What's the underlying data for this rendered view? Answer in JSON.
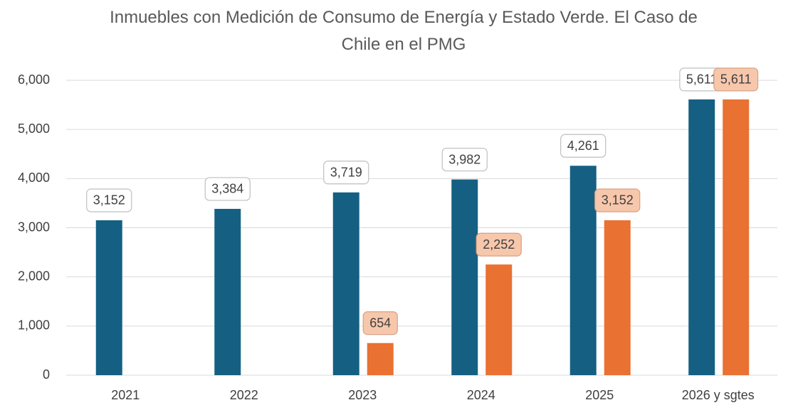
{
  "chart_data": {
    "type": "bar",
    "title": "Inmuebles con Medición de Consumo de Energía y Estado Verde. El Caso de Chile en el PMG",
    "categories": [
      "2021",
      "2022",
      "2023",
      "2024",
      "2025",
      "2026 y sgtes"
    ],
    "series": [
      {
        "color": "#156082",
        "values": [
          3152,
          3384,
          3719,
          3982,
          4261,
          5611
        ],
        "value_labels": [
          "3,152",
          "3,384",
          "3,719",
          "3,982",
          "4,261",
          "5,611"
        ]
      },
      {
        "color": "#e97132",
        "values": [
          null,
          null,
          654,
          2252,
          3152,
          5611
        ],
        "value_labels": [
          null,
          null,
          "654",
          "2,252",
          "3,152",
          "5,611"
        ]
      }
    ],
    "ylim": [
      0,
      6000
    ],
    "yticks": [
      0,
      {
        "value": 1000,
        "label": "1,000"
      },
      {
        "value": 2000,
        "label": "2,000"
      },
      {
        "value": 3000,
        "label": "3,000"
      },
      {
        "value": 4000,
        "label": "4,000"
      },
      {
        "value": 5000,
        "label": "5,000"
      },
      {
        "value": 6000,
        "label": "6,000"
      }
    ],
    "grid": true
  }
}
